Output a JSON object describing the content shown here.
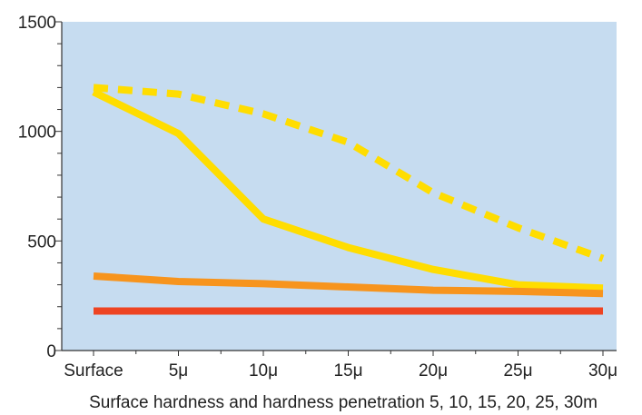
{
  "chart_data": {
    "type": "line",
    "title": "",
    "xlabel": "Surface hardness and hardness penetration 5, 10, 15, 20, 25, 30m",
    "ylabel": "",
    "categories": [
      "Surface",
      "5μ",
      "10μ",
      "15μ",
      "20μ",
      "25μ",
      "30μ"
    ],
    "ylim": [
      0,
      1500
    ],
    "yticks": [
      0,
      500,
      1000,
      1500
    ],
    "y_minor_step": 100,
    "grid": false,
    "background": "#c6dcf0",
    "series": [
      {
        "values": [
          1200,
          1170,
          1080,
          950,
          720,
          560,
          420
        ],
        "color": "#ffdd00",
        "dashed": true
      },
      {
        "values": [
          1180,
          990,
          600,
          470,
          370,
          300,
          285
        ],
        "color": "#ffdd00",
        "dashed": false
      },
      {
        "values": [
          340,
          315,
          305,
          290,
          275,
          270,
          260
        ],
        "color": "#f7941d",
        "dashed": false
      },
      {
        "values": [
          180,
          180,
          180,
          180,
          180,
          180,
          180
        ],
        "color": "#ee4422",
        "dashed": false
      }
    ]
  }
}
